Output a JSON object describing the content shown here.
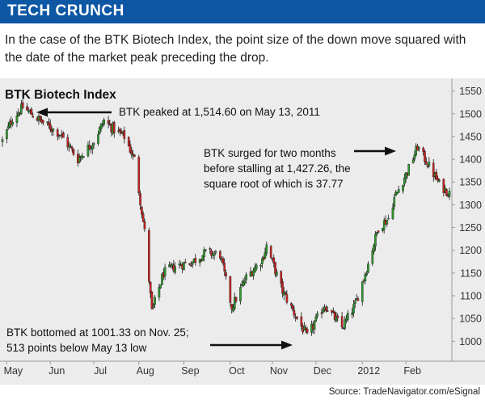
{
  "banner": {
    "title": "TECH CRUNCH"
  },
  "subtitle": "In the case of the BTK Biotech Index, the point size of the down move squared with the date of the market peak preceding the drop.",
  "source": "Source: TradeNavigator.com/eSignal",
  "colors": {
    "banner": "#0d57a5",
    "up": "#2e9a2e",
    "down": "#cc2222",
    "panel": "#ececec"
  },
  "chart_data": {
    "type": "candlestick",
    "title": "BTK Biotech Index",
    "ylim": [
      965,
      1560
    ],
    "yticks": [
      1000,
      1050,
      1100,
      1150,
      1200,
      1250,
      1300,
      1350,
      1400,
      1450,
      1500,
      1550
    ],
    "xtick_labels": [
      "May",
      "Jun",
      "Jul",
      "Aug",
      "Sep",
      "Oct",
      "Nov",
      "Dec",
      "2012",
      "Feb"
    ],
    "anchors": [
      {
        "date": "2011-04-29",
        "close": 1440
      },
      {
        "date": "2011-05-06",
        "close": 1490
      },
      {
        "date": "2011-05-13",
        "close": 1514.6
      },
      {
        "date": "2011-05-27",
        "close": 1480
      },
      {
        "date": "2011-06-08",
        "close": 1455
      },
      {
        "date": "2011-06-20",
        "close": 1400
      },
      {
        "date": "2011-07-01",
        "close": 1440
      },
      {
        "date": "2011-07-08",
        "close": 1485
      },
      {
        "date": "2011-07-15",
        "close": 1465
      },
      {
        "date": "2011-07-22",
        "close": 1450
      },
      {
        "date": "2011-07-29",
        "close": 1400
      },
      {
        "date": "2011-08-05",
        "close": 1240
      },
      {
        "date": "2011-08-10",
        "close": 1065
      },
      {
        "date": "2011-08-18",
        "close": 1150
      },
      {
        "date": "2011-08-26",
        "close": 1165
      },
      {
        "date": "2011-09-07",
        "close": 1175
      },
      {
        "date": "2011-09-16",
        "close": 1195
      },
      {
        "date": "2011-09-26",
        "close": 1190
      },
      {
        "date": "2011-10-04",
        "close": 1075
      },
      {
        "date": "2011-10-14",
        "close": 1140
      },
      {
        "date": "2011-10-25",
        "close": 1180
      },
      {
        "date": "2011-10-28",
        "close": 1210
      },
      {
        "date": "2011-11-08",
        "close": 1110
      },
      {
        "date": "2011-11-18",
        "close": 1050
      },
      {
        "date": "2011-11-25",
        "close": 1010
      },
      {
        "date": "2011-12-07",
        "close": 1080
      },
      {
        "date": "2011-12-19",
        "close": 1030
      },
      {
        "date": "2011-12-28",
        "close": 1080
      },
      {
        "date": "2012-01-06",
        "close": 1170
      },
      {
        "date": "2012-01-13",
        "close": 1250
      },
      {
        "date": "2012-01-20",
        "close": 1270
      },
      {
        "date": "2012-01-24",
        "close": 1315
      },
      {
        "date": "2012-02-03",
        "close": 1380
      },
      {
        "date": "2012-02-09",
        "close": 1427.26
      },
      {
        "date": "2012-02-17",
        "close": 1385
      },
      {
        "date": "2012-02-24",
        "close": 1345
      },
      {
        "date": "2012-03-02",
        "close": 1325
      }
    ],
    "annotations": [
      {
        "lines": [
          "BTK peaked at 1,514.60 on May 13, 2011"
        ]
      },
      {
        "lines": [
          "BTK surged for two months",
          "before stalling at 1,427.26, the",
          "square root of which is 37.77"
        ]
      },
      {
        "lines": [
          "BTK bottomed at 1001.33 on Nov. 25;",
          "513 points below May 13 low"
        ]
      }
    ]
  }
}
